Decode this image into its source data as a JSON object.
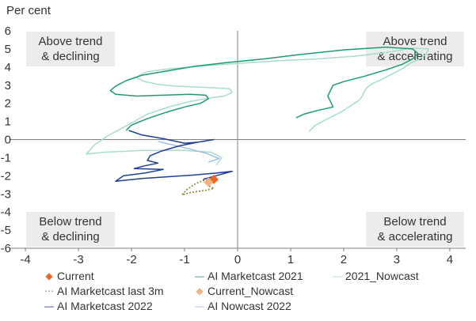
{
  "chart_data": {
    "type": "line",
    "title": "",
    "ylabel": "Per cent",
    "xlabel": "",
    "xlim": [
      -4.3,
      4.3
    ],
    "ylim": [
      -6,
      6
    ],
    "xticks": [
      -4,
      -3,
      -2,
      -1,
      0,
      1,
      2,
      3,
      4
    ],
    "yticks": [
      6,
      5,
      4,
      3,
      2,
      1,
      0,
      -1,
      -2,
      -3,
      -4,
      -5,
      -6
    ],
    "quadrants": {
      "top_left": [
        "Above trend",
        "& declining"
      ],
      "top_right": [
        "Above trend",
        "& accelerating"
      ],
      "bottom_left": [
        "Below trend",
        "& declining"
      ],
      "bottom_right": [
        "Below trend",
        "& accelerating"
      ]
    },
    "colors": {
      "marketcast_2021": "#1a9a78",
      "nowcast_2021": "#a8dccb",
      "marketcast_2022": "#1f3f95",
      "nowcast_2022": "#9fbde0",
      "current": "#f26522",
      "current_nowcast": "#f4b183",
      "last_3m": "#8a7a2a",
      "axis": "#7f7f7f",
      "quadrant_box": "#ececec"
    },
    "series": [
      {
        "name": "2021_Nowcast",
        "color": "#a8dccb",
        "dash": "",
        "points": [
          [
            1.35,
            0.45
          ],
          [
            1.45,
            0.75
          ],
          [
            1.6,
            1.0
          ],
          [
            1.8,
            1.3
          ],
          [
            2.0,
            1.6
          ],
          [
            2.2,
            2.0
          ],
          [
            2.3,
            2.2
          ],
          [
            2.35,
            2.4
          ],
          [
            2.4,
            2.7
          ],
          [
            2.45,
            2.9
          ],
          [
            2.55,
            3.1
          ],
          [
            2.7,
            3.3
          ],
          [
            2.9,
            3.6
          ],
          [
            3.1,
            3.9
          ],
          [
            3.25,
            4.2
          ],
          [
            3.4,
            4.4
          ],
          [
            3.55,
            4.7
          ],
          [
            3.6,
            5.0
          ],
          [
            3.3,
            5.05
          ],
          [
            2.8,
            4.8
          ],
          [
            2.2,
            4.6
          ],
          [
            1.5,
            4.45
          ],
          [
            0.8,
            4.35
          ],
          [
            0.0,
            4.2
          ],
          [
            -0.7,
            4.05
          ],
          [
            -1.3,
            3.9
          ],
          [
            -1.7,
            3.75
          ],
          [
            -1.85,
            3.55
          ],
          [
            -1.9,
            3.4
          ],
          [
            -1.75,
            3.2
          ],
          [
            -1.5,
            3.05
          ],
          [
            -1.2,
            2.95
          ],
          [
            -0.8,
            2.9
          ],
          [
            -0.4,
            2.85
          ],
          [
            -0.15,
            2.8
          ],
          [
            -0.1,
            2.6
          ],
          [
            -0.25,
            2.4
          ],
          [
            -0.5,
            2.3
          ],
          [
            -0.9,
            2.1
          ],
          [
            -1.3,
            1.8
          ],
          [
            -1.7,
            1.4
          ],
          [
            -1.95,
            1.0
          ],
          [
            -2.2,
            0.6
          ],
          [
            -2.45,
            0.2
          ],
          [
            -2.7,
            -0.3
          ],
          [
            -2.85,
            -0.8
          ],
          [
            -2.5,
            -0.7
          ],
          [
            -1.8,
            -0.6
          ],
          [
            -1.0,
            -0.6
          ],
          [
            -0.5,
            -0.7
          ],
          [
            -0.3,
            -1.0
          ],
          [
            -0.4,
            -1.4
          ]
        ]
      },
      {
        "name": "AI Marketcast 2021",
        "color": "#1a9a78",
        "dash": "",
        "points": [
          [
            1.1,
            1.2
          ],
          [
            1.25,
            1.4
          ],
          [
            1.5,
            1.6
          ],
          [
            1.8,
            1.8
          ],
          [
            1.75,
            2.1
          ],
          [
            1.7,
            2.4
          ],
          [
            1.75,
            2.7
          ],
          [
            1.8,
            3.0
          ],
          [
            2.0,
            3.2
          ],
          [
            2.4,
            3.5
          ],
          [
            2.8,
            3.85
          ],
          [
            3.1,
            4.15
          ],
          [
            3.3,
            4.45
          ],
          [
            3.4,
            4.75
          ],
          [
            3.3,
            5.0
          ],
          [
            2.8,
            5.1
          ],
          [
            2.0,
            4.95
          ],
          [
            1.2,
            4.7
          ],
          [
            0.5,
            4.45
          ],
          [
            -0.2,
            4.25
          ],
          [
            -0.8,
            4.05
          ],
          [
            -1.3,
            3.8
          ],
          [
            -1.8,
            3.55
          ],
          [
            -2.1,
            3.25
          ],
          [
            -2.3,
            2.95
          ],
          [
            -2.4,
            2.7
          ],
          [
            -2.3,
            2.5
          ],
          [
            -1.9,
            2.4
          ],
          [
            -1.4,
            2.45
          ],
          [
            -0.9,
            2.5
          ],
          [
            -0.6,
            2.45
          ],
          [
            -0.55,
            2.25
          ],
          [
            -0.7,
            2.0
          ],
          [
            -1.0,
            1.8
          ],
          [
            -1.35,
            1.5
          ],
          [
            -1.7,
            1.15
          ],
          [
            -2.0,
            0.8
          ],
          [
            -2.1,
            0.5
          ]
        ]
      },
      {
        "name": "AI Nowcast 2022",
        "color": "#9fbde0",
        "dash": "",
        "points": [
          [
            -1.5,
            -0.1
          ],
          [
            -1.0,
            -0.45
          ],
          [
            -0.6,
            -0.75
          ],
          [
            -0.35,
            -1.05
          ],
          [
            -0.55,
            -1.25
          ]
        ]
      },
      {
        "name": "AI Marketcast 2022",
        "color": "#1f3f95",
        "dash": "",
        "points": [
          [
            -2.05,
            0.5
          ],
          [
            -1.8,
            0.25
          ],
          [
            -1.4,
            0.05
          ],
          [
            -1.0,
            -0.2
          ],
          [
            -0.75,
            -0.15
          ],
          [
            -0.45,
            0.0
          ],
          [
            -0.75,
            -0.15
          ],
          [
            -1.1,
            -0.35
          ],
          [
            -1.45,
            -0.65
          ],
          [
            -1.65,
            -0.9
          ],
          [
            -1.7,
            -1.15
          ],
          [
            -1.5,
            -1.3
          ],
          [
            -1.75,
            -1.45
          ],
          [
            -1.95,
            -1.6
          ],
          [
            -1.4,
            -1.65
          ],
          [
            -1.75,
            -1.85
          ],
          [
            -2.15,
            -2.0
          ],
          [
            -2.3,
            -2.3
          ],
          [
            -1.8,
            -2.15
          ],
          [
            -1.3,
            -2.05
          ],
          [
            -0.8,
            -1.95
          ],
          [
            -0.4,
            -1.85
          ],
          [
            -0.1,
            -1.75
          ],
          [
            -0.35,
            -1.95
          ],
          [
            -0.65,
            -2.2
          ]
        ]
      },
      {
        "name": "AI Marketcast last 3m",
        "color": "#8a7a2a",
        "dash": "2,2",
        "points": [
          [
            -0.45,
            -2.3
          ],
          [
            -0.65,
            -2.25
          ],
          [
            -0.8,
            -2.45
          ],
          [
            -0.95,
            -2.75
          ],
          [
            -1.05,
            -3.05
          ],
          [
            -0.85,
            -2.9
          ],
          [
            -0.6,
            -2.8
          ],
          [
            -0.45,
            -2.7
          ],
          [
            -0.55,
            -2.55
          ],
          [
            -0.45,
            -2.3
          ]
        ]
      }
    ],
    "points": [
      {
        "name": "Current",
        "color": "#f26522",
        "x": -0.45,
        "y": -2.2
      },
      {
        "name": "Current_Nowcast",
        "color": "#f4b183",
        "x": -0.55,
        "y": -2.35
      }
    ],
    "legend": [
      {
        "label": "Current",
        "key": "◆",
        "color": "#f26522"
      },
      {
        "label": "AI Marketcast 2021",
        "key": "—",
        "color": "#1a9a78"
      },
      {
        "label": "2021_Nowcast",
        "key": "—",
        "color": "#a8dccb"
      },
      {
        "label": "AI Marketcast last 3m",
        "key": "⋯",
        "color": "#8a7a2a"
      },
      {
        "label": "Current_Nowcast",
        "key": "◆",
        "color": "#f4b183"
      },
      {
        "label": "AI Marketcast 2022",
        "key": "—",
        "color": "#1f3f95"
      },
      {
        "label": "AI Nowcast 2022",
        "key": "—",
        "color": "#9fbde0"
      }
    ]
  }
}
